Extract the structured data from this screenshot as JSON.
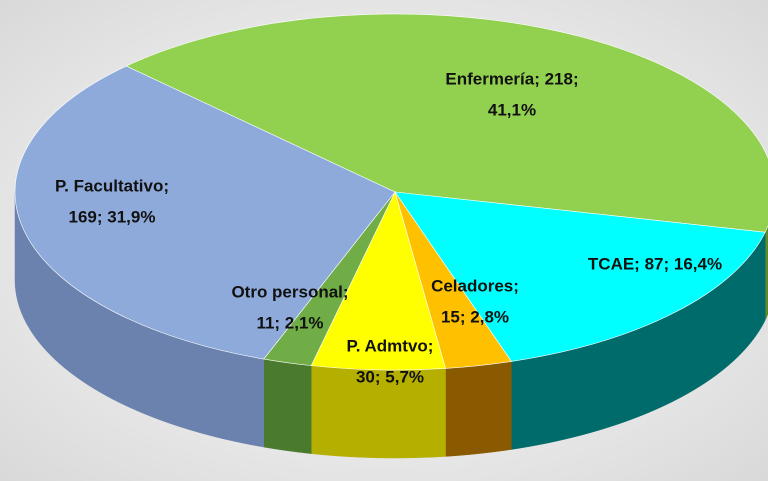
{
  "chart_data": {
    "type": "pie3d",
    "values": [
      218,
      87,
      15,
      30,
      11,
      169
    ],
    "value_labels": [
      [
        "Enfermería; 218;",
        "41,1%"
      ],
      [
        "TCAE; 87; 16,4%"
      ],
      [
        "Celadores;",
        "15; 2,8%"
      ],
      [
        "P. Admtvo;",
        "30; 5,7%"
      ],
      [
        "Otro personal;",
        "11; 2,1%"
      ],
      [
        "P. Facultativo;",
        "169; 31,9%"
      ]
    ],
    "colors": [
      "#92d050",
      "#00ffff",
      "#ffc000",
      "#ffff00",
      "#70ad47",
      "#8eaadb"
    ],
    "side_colors": [
      "#5e8a2c",
      "#006b6b",
      "#8a5a00",
      "#b5b000",
      "#4a7a2e",
      "#6a82ad"
    ]
  }
}
